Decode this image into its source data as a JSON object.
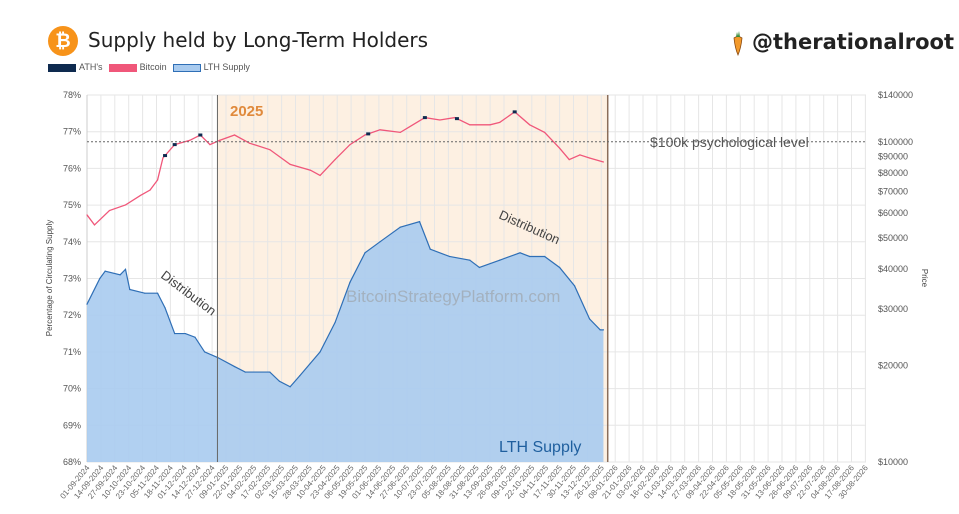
{
  "header": {
    "title": "Supply held by Long-Term Holders",
    "handle": "@therationalroot",
    "logo_icon": "bitcoin-icon",
    "handle_icon": "carrot-icon"
  },
  "colors": {
    "ath": "#0e2a4f",
    "bitcoin": "#f0577a",
    "lth_fill": "#a9cbef",
    "lth_line": "#2f6fb6",
    "year_shade": "#fdf0e2"
  },
  "chart_data": {
    "type": "line",
    "legend": {
      "placement": "top-left",
      "entries": [
        "ATH's",
        "Bitcoin",
        "LTH Supply"
      ]
    },
    "ylabel": "Percentage of Circulating Supply",
    "y2label": "Price",
    "ylim": [
      68,
      78
    ],
    "y2lim": [
      10000,
      140000
    ],
    "y2scale": "log",
    "grid": true,
    "yticks": [
      "78%",
      "77%",
      "76%",
      "75%",
      "74%",
      "73%",
      "72%",
      "71%",
      "70%",
      "69%",
      "68%"
    ],
    "y2ticks": [
      {
        "v": 140000,
        "label": "$140000"
      },
      {
        "v": 100000,
        "label": "$100000"
      },
      {
        "v": 90000,
        "label": "$90000"
      },
      {
        "v": 80000,
        "label": "$80000"
      },
      {
        "v": 70000,
        "label": "$70000"
      },
      {
        "v": 60000,
        "label": "$60000"
      },
      {
        "v": 50000,
        "label": "$50000"
      },
      {
        "v": 40000,
        "label": "$40000"
      },
      {
        "v": 30000,
        "label": "$30000"
      },
      {
        "v": 20000,
        "label": "$20000"
      },
      {
        "v": 10000,
        "label": "$10000"
      }
    ],
    "xticks": [
      "01-09-2024",
      "14-09-2024",
      "27-09-2024",
      "10-10-2024",
      "23-10-2024",
      "05-11-2024",
      "18-11-2024",
      "01-12-2024",
      "14-12-2024",
      "27-12-2024",
      "09-01-2025",
      "22-01-2025",
      "04-02-2025",
      "17-02-2025",
      "02-03-2025",
      "15-03-2025",
      "28-03-2025",
      "10-04-2025",
      "23-04-2025",
      "06-05-2025",
      "19-05-2025",
      "01-06-2025",
      "14-06-2025",
      "27-06-2025",
      "10-07-2025",
      "23-07-2025",
      "05-08-2025",
      "18-08-2025",
      "31-08-2025",
      "13-09-2025",
      "26-09-2025",
      "09-10-2025",
      "22-10-2025",
      "04-11-2025",
      "17-11-2025",
      "30-11-2025",
      "13-12-2025",
      "26-12-2025",
      "08-01-2026",
      "21-01-2026",
      "03-02-2026",
      "16-02-2026",
      "01-03-2026",
      "14-03-2026",
      "27-03-2026",
      "09-04-2026",
      "22-04-2026",
      "05-05-2026",
      "18-05-2026",
      "31-05-2026",
      "13-06-2026",
      "26-06-2026",
      "09-07-2026",
      "22-07-2026",
      "04-08-2026",
      "17-08-2026",
      "30-08-2026"
    ],
    "series": [
      {
        "name": "LTH Supply",
        "axis": "left",
        "points": [
          [
            "2024-09-01",
            72.3
          ],
          [
            "2024-09-13",
            73.0
          ],
          [
            "2024-09-18",
            73.2
          ],
          [
            "2024-10-02",
            73.1
          ],
          [
            "2024-10-07",
            73.25
          ],
          [
            "2024-10-11",
            72.7
          ],
          [
            "2024-10-25",
            72.6
          ],
          [
            "2024-11-06",
            72.6
          ],
          [
            "2024-11-13",
            72.2
          ],
          [
            "2024-11-22",
            71.5
          ],
          [
            "2024-12-02",
            71.5
          ],
          [
            "2024-12-11",
            71.4
          ],
          [
            "2024-12-20",
            71.0
          ],
          [
            "2025-01-01",
            70.85
          ],
          [
            "2025-01-17",
            70.6
          ],
          [
            "2025-01-27",
            70.45
          ],
          [
            "2025-02-19",
            70.45
          ],
          [
            "2025-02-28",
            70.2
          ],
          [
            "2025-03-10",
            70.05
          ],
          [
            "2025-03-19",
            70.35
          ],
          [
            "2025-04-07",
            71.0
          ],
          [
            "2025-04-21",
            71.8
          ],
          [
            "2025-05-05",
            72.9
          ],
          [
            "2025-05-19",
            73.7
          ],
          [
            "2025-06-02",
            74.0
          ],
          [
            "2025-06-21",
            74.4
          ],
          [
            "2025-07-09",
            74.55
          ],
          [
            "2025-07-19",
            73.8
          ],
          [
            "2025-08-06",
            73.6
          ],
          [
            "2025-08-25",
            73.5
          ],
          [
            "2025-09-03",
            73.3
          ],
          [
            "2025-09-22",
            73.5
          ],
          [
            "2025-10-11",
            73.7
          ],
          [
            "2025-10-20",
            73.6
          ],
          [
            "2025-11-03",
            73.6
          ],
          [
            "2025-11-17",
            73.3
          ],
          [
            "2025-12-01",
            72.8
          ],
          [
            "2025-12-15",
            71.9
          ],
          [
            "2025-12-25",
            71.6
          ],
          [
            "2025-12-28",
            71.6
          ]
        ]
      },
      {
        "name": "Bitcoin",
        "axis": "right",
        "points": [
          [
            "2024-09-01",
            59100
          ],
          [
            "2024-09-08",
            55000
          ],
          [
            "2024-09-22",
            61000
          ],
          [
            "2024-10-07",
            63500
          ],
          [
            "2024-10-21",
            68000
          ],
          [
            "2024-10-30",
            70700
          ],
          [
            "2024-11-06",
            76000
          ],
          [
            "2024-11-11",
            89000
          ],
          [
            "2024-11-22",
            98000
          ],
          [
            "2024-12-06",
            101000
          ],
          [
            "2024-12-16",
            105000
          ],
          [
            "2024-12-25",
            98000
          ],
          [
            "2025-01-03",
            101000
          ],
          [
            "2025-01-17",
            105000
          ],
          [
            "2025-01-31",
            99000
          ],
          [
            "2025-02-19",
            94500
          ],
          [
            "2025-03-10",
            85000
          ],
          [
            "2025-03-29",
            81500
          ],
          [
            "2025-04-07",
            78500
          ],
          [
            "2025-04-21",
            88000
          ],
          [
            "2025-05-05",
            98000
          ],
          [
            "2025-05-19",
            105000
          ],
          [
            "2025-06-02",
            109000
          ],
          [
            "2025-06-21",
            107000
          ],
          [
            "2025-07-14",
            119000
          ],
          [
            "2025-07-28",
            117000
          ],
          [
            "2025-08-11",
            119000
          ],
          [
            "2025-08-25",
            113000
          ],
          [
            "2025-09-13",
            113000
          ],
          [
            "2025-09-22",
            115000
          ],
          [
            "2025-10-06",
            124000
          ],
          [
            "2025-10-20",
            113000
          ],
          [
            "2025-11-03",
            107000
          ],
          [
            "2025-11-17",
            95500
          ],
          [
            "2025-11-26",
            88000
          ],
          [
            "2025-12-06",
            91000
          ],
          [
            "2025-12-15",
            89000
          ],
          [
            "2025-12-28",
            86500
          ]
        ]
      }
    ],
    "ath_dates": [
      "2024-11-13",
      "2024-11-22",
      "2024-12-16",
      "2025-05-22",
      "2025-07-14",
      "2025-08-13",
      "2025-10-06"
    ],
    "highlight_region": {
      "label": "2025",
      "start": "2025-01-01",
      "end": "2026-01-01"
    },
    "reference_line": {
      "value": 100000,
      "label": "$100k psychological level"
    },
    "annotations": [
      "Distribution",
      "Distribution",
      "LTH Supply"
    ],
    "watermark": "BitcoinStrategyPlatform.com"
  }
}
